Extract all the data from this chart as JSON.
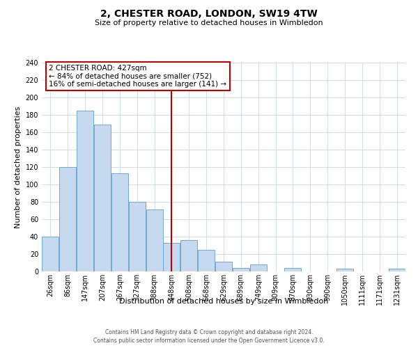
{
  "title": "2, CHESTER ROAD, LONDON, SW19 4TW",
  "subtitle": "Size of property relative to detached houses in Wimbledon",
  "xlabel": "Distribution of detached houses by size in Wimbledon",
  "ylabel": "Number of detached properties",
  "bar_labels": [
    "26sqm",
    "86sqm",
    "147sqm",
    "207sqm",
    "267sqm",
    "327sqm",
    "388sqm",
    "448sqm",
    "508sqm",
    "568sqm",
    "629sqm",
    "689sqm",
    "749sqm",
    "809sqm",
    "870sqm",
    "930sqm",
    "990sqm",
    "1050sqm",
    "1111sqm",
    "1171sqm",
    "1231sqm"
  ],
  "bar_values": [
    40,
    120,
    185,
    169,
    113,
    80,
    71,
    33,
    36,
    25,
    11,
    4,
    8,
    0,
    4,
    0,
    0,
    3,
    0,
    0,
    3
  ],
  "bar_color": "#c6d9ee",
  "bar_edge_color": "#6aaad4",
  "vline_index": 7,
  "vline_color": "#c00000",
  "annotation_title": "2 CHESTER ROAD: 427sqm",
  "annotation_line1": "← 84% of detached houses are smaller (752)",
  "annotation_line2": "16% of semi-detached houses are larger (141) →",
  "annotation_box_color": "#c00000",
  "ylim": [
    0,
    240
  ],
  "yticks": [
    0,
    20,
    40,
    60,
    80,
    100,
    120,
    140,
    160,
    180,
    200,
    220,
    240
  ],
  "footer_line1": "Contains HM Land Registry data © Crown copyright and database right 2024.",
  "footer_line2": "Contains public sector information licensed under the Open Government Licence v3.0.",
  "bg_color": "#ffffff",
  "grid_color": "#c8d8e8",
  "title_fontsize": 10,
  "subtitle_fontsize": 8,
  "ylabel_fontsize": 8,
  "xlabel_fontsize": 8,
  "tick_fontsize": 7,
  "footer_fontsize": 5.5
}
